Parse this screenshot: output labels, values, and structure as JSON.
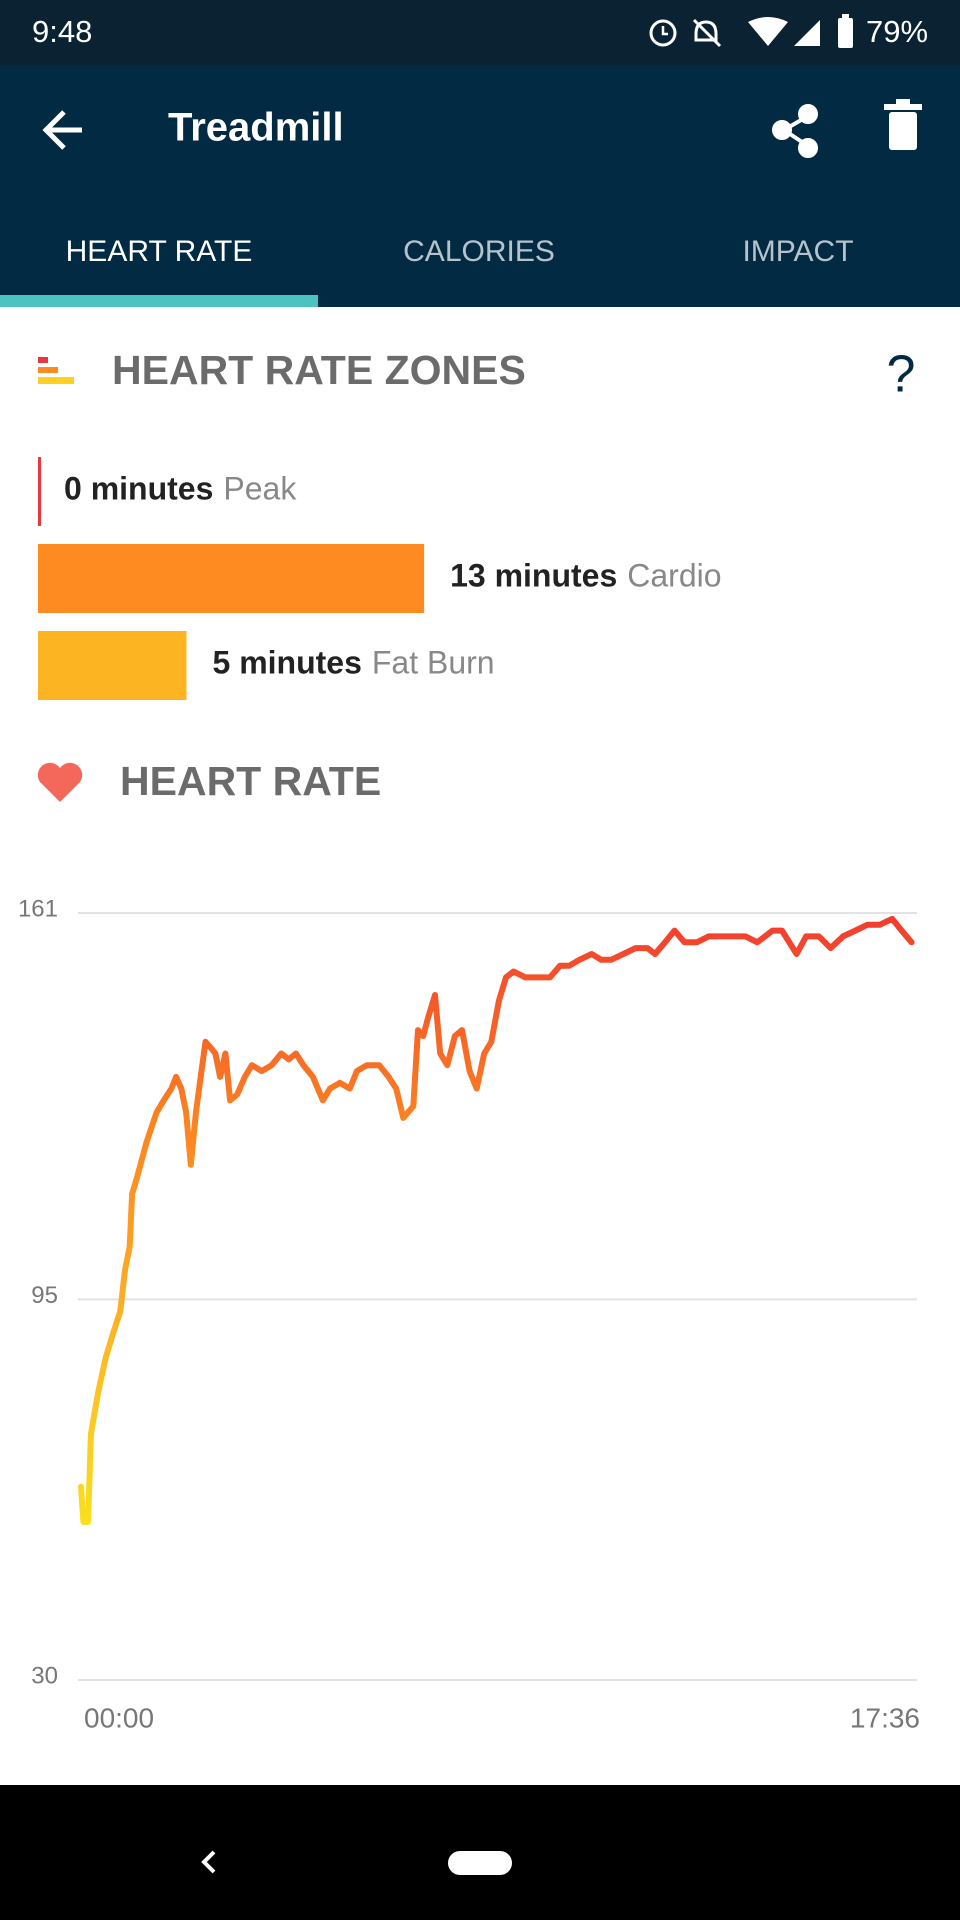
{
  "status_bar": {
    "time": "9:48",
    "battery": "79%"
  },
  "app_bar": {
    "title": "Treadmill"
  },
  "tabs": [
    "HEART RATE",
    "CALORIES",
    "IMPACT"
  ],
  "zones": {
    "title": "HEART RATE ZONES",
    "help": "?",
    "items": [
      {
        "minutes": 0,
        "label": "0 minutes",
        "name": "Peak",
        "color": "#e8383d"
      },
      {
        "minutes": 13,
        "label": "13 minutes",
        "name": "Cardio",
        "color": "#fe8a22"
      },
      {
        "minutes": 5,
        "label": "5 minutes",
        "name": "Fat Burn",
        "color": "#fdb422"
      }
    ]
  },
  "chart_data": {
    "type": "line",
    "title": "HEART RATE",
    "x": [
      0,
      0.05,
      0.15,
      0.21,
      0.36,
      0.52,
      0.67,
      0.83,
      0.93,
      1.03,
      1.08,
      1.19,
      1.39,
      1.6,
      1.75,
      1.91,
      2.01,
      2.12,
      2.22,
      2.32,
      2.43,
      2.53,
      2.63,
      2.74,
      2.84,
      2.94,
      3.05,
      3.15,
      3.3,
      3.46,
      3.61,
      3.82,
      4.03,
      4.23,
      4.39,
      4.54,
      4.7,
      4.9,
      5.11,
      5.26,
      5.47,
      5.68,
      5.83,
      6.04,
      6.3,
      6.5,
      6.66,
      6.81,
      7.02,
      7.12,
      7.23,
      7.33,
      7.48,
      7.59,
      7.74,
      7.9,
      8.05,
      8.21,
      8.36,
      8.52,
      8.67,
      8.83,
      8.98,
      9.14,
      9.39,
      9.65,
      9.91,
      10.12,
      10.32,
      10.53,
      10.79,
      10.99,
      11.2,
      11.46,
      11.72,
      11.97,
      12.13,
      12.34,
      12.54,
      12.75,
      13.01,
      13.26,
      13.52,
      13.78,
      14.04,
      14.29,
      14.61,
      14.81,
      15.12,
      15.32,
      15.59,
      15.84,
      16.1,
      16.36,
      16.62,
      16.88,
      17.14,
      17.34,
      17.55
    ],
    "values": [
      63,
      57,
      57,
      72,
      79,
      85,
      89,
      93,
      100,
      104,
      113,
      116,
      122,
      127,
      129,
      131,
      133,
      131,
      127,
      118,
      127,
      133,
      139,
      138,
      137,
      133,
      137,
      129,
      130,
      133,
      135,
      134,
      135,
      137,
      136,
      137,
      135,
      133,
      129,
      131,
      132,
      131,
      134,
      135,
      135,
      133,
      131,
      126,
      128,
      141,
      140,
      143,
      147,
      137,
      135,
      140,
      141,
      134,
      131,
      137,
      139,
      146,
      150,
      151,
      150,
      150,
      150,
      152,
      152,
      153,
      154,
      153,
      153,
      154,
      155,
      155,
      154,
      156,
      158,
      156,
      156,
      157,
      157,
      157,
      157,
      156,
      158,
      158,
      154,
      157,
      157,
      155,
      157,
      158,
      159,
      159,
      160,
      158,
      156
    ],
    "xlim": [
      0,
      17.6
    ],
    "xticks": [
      {
        "value": 0,
        "label": "00:00"
      },
      {
        "value": 17.6,
        "label": "17:36"
      }
    ],
    "ylim": [
      30,
      161
    ],
    "yticks": [
      30,
      95,
      161
    ],
    "grid": true,
    "colors": [
      "#f8e71c",
      "#fdb827",
      "#fb8521",
      "#f23b2f"
    ]
  }
}
